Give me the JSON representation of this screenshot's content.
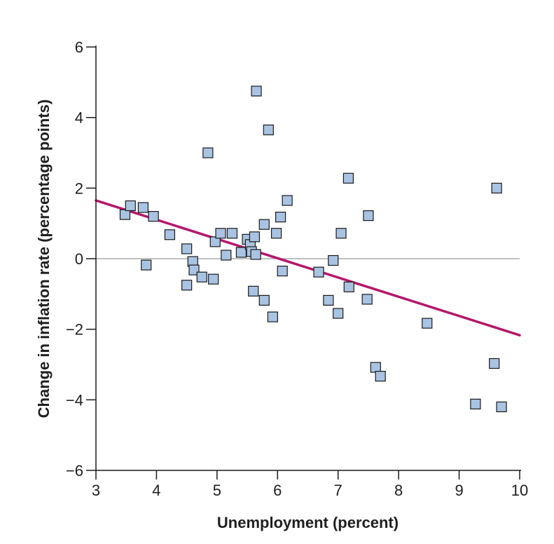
{
  "chart_data": {
    "type": "scatter",
    "title": "",
    "xlabel": "Unemployment (percent)",
    "ylabel": "Change in inflation rate (percentage points)",
    "xlim": [
      3,
      10
    ],
    "ylim": [
      -6,
      6
    ],
    "xticks": [
      3,
      4,
      5,
      6,
      7,
      8,
      9,
      10
    ],
    "yticks": [
      6,
      4,
      2,
      0,
      -2,
      -4,
      -6
    ],
    "ytick_labels": [
      "6",
      "4",
      "2",
      "0",
      "−2",
      "−4",
      "−6"
    ],
    "zero_line": true,
    "grid": false,
    "colors": {
      "marker_fill": "#a9c3e3",
      "marker_edge": "#1a1a1a",
      "fit_line": "#b5176b",
      "zero_line": "#9a9a9a",
      "axis": "#1a1a1a"
    },
    "points": [
      {
        "x": 3.48,
        "y": 1.25
      },
      {
        "x": 3.57,
        "y": 1.5
      },
      {
        "x": 3.78,
        "y": 1.45
      },
      {
        "x": 3.83,
        "y": -0.18
      },
      {
        "x": 3.95,
        "y": 1.2
      },
      {
        "x": 4.22,
        "y": 0.68
      },
      {
        "x": 4.5,
        "y": 0.28
      },
      {
        "x": 4.5,
        "y": -0.75
      },
      {
        "x": 4.6,
        "y": -0.08
      },
      {
        "x": 4.62,
        "y": -0.32
      },
      {
        "x": 4.75,
        "y": -0.52
      },
      {
        "x": 4.85,
        "y": 3.0
      },
      {
        "x": 4.94,
        "y": -0.58
      },
      {
        "x": 4.97,
        "y": 0.48
      },
      {
        "x": 5.06,
        "y": 0.72
      },
      {
        "x": 5.15,
        "y": 0.1
      },
      {
        "x": 5.25,
        "y": 0.72
      },
      {
        "x": 5.4,
        "y": 0.18
      },
      {
        "x": 5.5,
        "y": 0.55
      },
      {
        "x": 5.55,
        "y": 0.4
      },
      {
        "x": 5.57,
        "y": 0.2
      },
      {
        "x": 5.6,
        "y": -0.92
      },
      {
        "x": 5.62,
        "y": 0.62
      },
      {
        "x": 5.64,
        "y": 0.12
      },
      {
        "x": 5.65,
        "y": 4.75
      },
      {
        "x": 5.78,
        "y": 0.97
      },
      {
        "x": 5.78,
        "y": -1.18
      },
      {
        "x": 5.85,
        "y": 3.65
      },
      {
        "x": 5.92,
        "y": -1.65
      },
      {
        "x": 5.98,
        "y": 0.72
      },
      {
        "x": 6.05,
        "y": 1.18
      },
      {
        "x": 6.08,
        "y": -0.35
      },
      {
        "x": 6.16,
        "y": 1.65
      },
      {
        "x": 6.68,
        "y": -0.38
      },
      {
        "x": 6.84,
        "y": -1.18
      },
      {
        "x": 6.92,
        "y": -0.05
      },
      {
        "x": 7.0,
        "y": -1.55
      },
      {
        "x": 7.05,
        "y": 0.72
      },
      {
        "x": 7.17,
        "y": 2.28
      },
      {
        "x": 7.18,
        "y": -0.8
      },
      {
        "x": 7.48,
        "y": -1.15
      },
      {
        "x": 7.5,
        "y": 1.22
      },
      {
        "x": 7.62,
        "y": -3.08
      },
      {
        "x": 7.7,
        "y": -3.33
      },
      {
        "x": 8.47,
        "y": -1.83
      },
      {
        "x": 9.27,
        "y": -4.12
      },
      {
        "x": 9.58,
        "y": -2.97
      },
      {
        "x": 9.62,
        "y": 2.0
      },
      {
        "x": 9.7,
        "y": -4.2
      }
    ],
    "fit_line": {
      "x": [
        3,
        10
      ],
      "y": [
        1.65,
        -2.17
      ]
    }
  }
}
